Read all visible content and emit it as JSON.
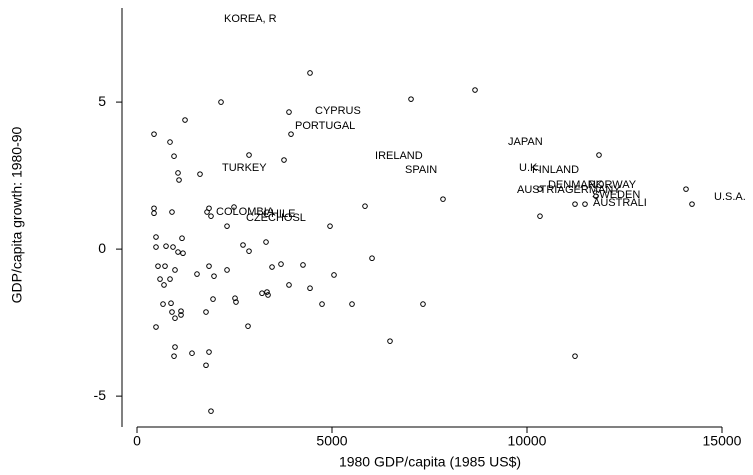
{
  "chart_data": {
    "type": "scatter",
    "x_label": "1980 GDP/capita (1985 US$)",
    "y_label": "GDP/capita growth: 1980-90",
    "xlim": [
      -385,
      15795
    ],
    "ylim": [
      -6.05,
      8.2
    ],
    "xticks": [
      0,
      5000,
      10000,
      15000
    ],
    "yticks": [
      -5,
      0,
      5
    ],
    "color": "#000000",
    "x": [
      2231,
      4564,
      4051,
      2179,
      2026,
      3231,
      2795,
      6103,
      6872,
      9513,
      9795,
      10128,
      10538,
      11564,
      9744,
      10974,
      11667,
      11692,
      14795,
      4436,
      2154,
      1231,
      3897,
      3949,
      7026,
      8667,
      436,
      846,
      949,
      2872,
      3769,
      11846,
      1051,
      1077,
      1615,
      436,
      436,
      897,
      1846,
      1795,
      1897,
      2487,
      2308,
      4949,
      5846,
      7846,
      10333,
      14077,
      14231,
      11231,
      11487,
      11769,
      10333,
      487,
      487,
      1154,
      3308,
      2718,
      2872,
      744,
      923,
      1051,
      1179,
      718,
      538,
      974,
      590,
      692,
      846,
      1538,
      1846,
      1974,
      2308,
      3462,
      3692,
      4256,
      5051,
      6026,
      3897,
      4436,
      3333,
      3205,
      3359,
      2513,
      2538,
      1949,
      4744,
      5513,
      7333,
      667,
      872,
      897,
      1128,
      1128,
      1769,
      974,
      487,
      2846,
      6487,
      974,
      949,
      1410,
      1846,
      1769,
      11231,
      1897
    ],
    "y": [
      7.82,
      4.69,
      4.18,
      2.76,
      1.26,
      1.19,
      1.05,
      3.16,
      2.69,
      3.64,
      2.76,
      2.69,
      2.18,
      2.18,
      2.01,
      2.01,
      1.84,
      1.56,
      1.77,
      5.99,
      5.0,
      4.39,
      4.66,
      3.91,
      5.1,
      5.41,
      3.91,
      3.64,
      3.16,
      3.2,
      3.03,
      3.2,
      2.59,
      2.35,
      2.55,
      1.39,
      1.22,
      1.26,
      1.39,
      1.26,
      1.12,
      1.43,
      0.78,
      0.78,
      1.46,
      1.7,
      2.04,
      2.04,
      1.53,
      1.53,
      1.53,
      1.8,
      1.12,
      0.41,
      0.07,
      0.37,
      0.24,
      0.14,
      -0.07,
      0.1,
      0.07,
      -0.1,
      -0.14,
      -0.58,
      -0.58,
      -0.71,
      -1.02,
      -1.22,
      -1.02,
      -0.85,
      -0.58,
      -0.92,
      -0.71,
      -0.61,
      -0.51,
      -0.54,
      -0.88,
      -0.31,
      -1.22,
      -1.33,
      -1.46,
      -1.5,
      -1.56,
      -1.67,
      -1.8,
      -1.7,
      -1.87,
      -1.87,
      -1.87,
      -1.87,
      -1.84,
      -2.14,
      -2.11,
      -2.24,
      -2.14,
      -2.35,
      -2.65,
      -2.62,
      -3.13,
      -3.33,
      -3.64,
      -3.54,
      -3.5,
      -3.95,
      -3.64,
      -5.51
    ],
    "labels": [
      "KOREA, R",
      "CYPRUS",
      "PORTUGAL",
      "TURKEY",
      "COLOMBIA",
      "CHILE",
      "CZECHOSL",
      "IRELAND",
      "SPAIN",
      "JAPAN",
      "U.K.",
      "FINLAND",
      "DENMARK",
      "NORWAY",
      "AUSTRIA",
      "GERMANY",
      "SWEDEN",
      "AUSTRALI",
      "U.S.A.",
      null,
      null,
      null,
      null,
      null,
      null,
      null,
      null,
      null,
      null,
      null,
      null,
      null,
      null,
      null,
      null,
      null,
      null,
      null,
      null,
      null,
      null,
      null,
      null,
      null,
      null,
      null,
      null,
      null,
      null,
      null,
      null,
      null,
      null,
      null,
      null,
      null,
      null,
      null,
      null,
      null,
      null,
      null,
      null,
      null,
      null,
      null,
      null,
      null,
      null,
      null,
      null,
      null,
      null,
      null,
      null,
      null,
      null,
      null,
      null,
      null,
      null,
      null,
      null,
      null,
      null,
      null,
      null,
      null,
      null,
      null,
      null,
      null,
      null,
      null,
      null,
      null,
      null,
      null,
      null,
      null,
      null,
      null,
      null,
      null,
      null,
      null
    ]
  }
}
